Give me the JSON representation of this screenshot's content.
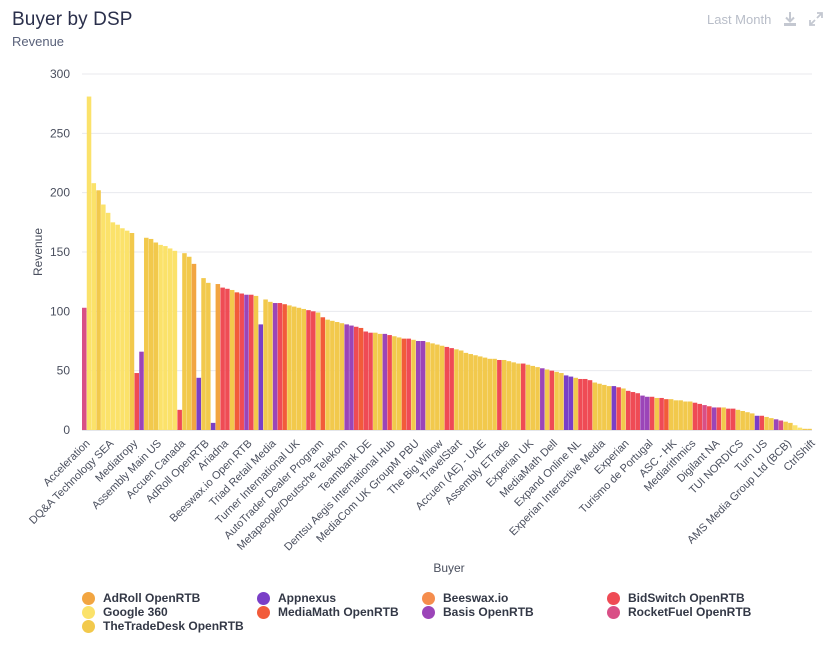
{
  "header": {
    "title": "Buyer by DSP",
    "subtitle": "Revenue",
    "range_label": "Last Month",
    "download_icon": "download-icon",
    "expand_icon": "expand-icon"
  },
  "chart_data": {
    "type": "bar",
    "stacked": true,
    "xlabel": "Buyer",
    "ylabel": "Revenue",
    "ylim": [
      0,
      300
    ],
    "yticks": [
      0,
      50,
      100,
      150,
      200,
      250,
      300
    ],
    "grid": true,
    "legend_position": "bottom",
    "x_tick_labels": [
      "Acceleration",
      "DQ&A Technology SEA",
      "Mediatropy",
      "Assembly Main US",
      "Accuen Canada",
      "AdRoll OpenRTB",
      "Ariadna",
      "Beeswax.io Open RTB",
      "Triad Retail Media",
      "Turner International UK",
      "AutoTrader Dealer Program",
      "Metapeople/Deutsche Telekom",
      "Teambank DE",
      "Dentsu Aegis International Hub",
      "MediaCom UK GroupM PBU",
      "The Big Willow",
      "TravelStart",
      "Accuen (AE) - UAE",
      "Assembly ETrade",
      "Experian UK",
      "MediaMath Dell",
      "Expand Online NL",
      "Experian Interactive Media",
      "Experian",
      "Turismo de Portugal",
      "ASC - HK",
      "Mediarithmics",
      "Digilant NA",
      "TUI NORDICS",
      "Turn US",
      "AMS Media Group Ltd (BCB)",
      "CtrlShift"
    ],
    "series": [
      {
        "name": "AdRoll OpenRTB",
        "color": "#f2a541"
      },
      {
        "name": "Appnexus",
        "color": "#7a3fc7"
      },
      {
        "name": "Beeswax.io",
        "color": "#f58d4d"
      },
      {
        "name": "BidSwitch OpenRTB",
        "color": "#ef4b55"
      },
      {
        "name": "Google 360",
        "color": "#fbe26a"
      },
      {
        "name": "MediaMath OpenRTB",
        "color": "#f25b3a"
      },
      {
        "name": "Basis OpenRTB",
        "color": "#9b45b8"
      },
      {
        "name": "RocketFuel OpenRTB",
        "color": "#d94f86"
      },
      {
        "name": "TheTradeDesk OpenRTB",
        "color": "#f2c94c"
      }
    ],
    "bars": [
      {
        "total": 103,
        "series": "RocketFuel OpenRTB"
      },
      {
        "total": 281,
        "series": "Google 360"
      },
      {
        "total": 208,
        "series": "Google 360"
      },
      {
        "total": 202,
        "series": "TheTradeDesk OpenRTB"
      },
      {
        "total": 190,
        "series": "Google 360"
      },
      {
        "total": 183,
        "series": "Google 360"
      },
      {
        "total": 175,
        "series": "Google 360"
      },
      {
        "total": 173,
        "series": "Google 360"
      },
      {
        "total": 170,
        "series": "Google 360"
      },
      {
        "total": 168,
        "series": "Google 360"
      },
      {
        "total": 166,
        "series": "TheTradeDesk OpenRTB"
      },
      {
        "total": 48,
        "series": "BidSwitch OpenRTB"
      },
      {
        "total": 66,
        "series": "Basis OpenRTB"
      },
      {
        "total": 162,
        "series": "TheTradeDesk OpenRTB"
      },
      {
        "total": 161,
        "series": "TheTradeDesk OpenRTB"
      },
      {
        "total": 158,
        "series": "TheTradeDesk OpenRTB"
      },
      {
        "total": 156,
        "series": "Google 360"
      },
      {
        "total": 155,
        "series": "Google 360"
      },
      {
        "total": 153,
        "series": "Google 360"
      },
      {
        "total": 151,
        "series": "Google 360"
      },
      {
        "total": 17,
        "series": "BidSwitch OpenRTB"
      },
      {
        "total": 149,
        "series": "TheTradeDesk OpenRTB"
      },
      {
        "total": 146,
        "series": "TheTradeDesk OpenRTB"
      },
      {
        "total": 140,
        "series": "AdRoll OpenRTB"
      },
      {
        "total": 44,
        "series": "Appnexus"
      },
      {
        "total": 128,
        "series": "TheTradeDesk OpenRTB"
      },
      {
        "total": 124,
        "series": "TheTradeDesk OpenRTB"
      },
      {
        "total": 6,
        "series": "Appnexus"
      },
      {
        "total": 123,
        "series": "AdRoll OpenRTB"
      },
      {
        "total": 120,
        "series": "BidSwitch OpenRTB"
      },
      {
        "total": 119,
        "series": "BidSwitch OpenRTB"
      },
      {
        "total": 118,
        "series": "TheTradeDesk OpenRTB"
      },
      {
        "total": 116,
        "series": "MediaMath OpenRTB"
      },
      {
        "total": 115,
        "series": "BidSwitch OpenRTB"
      },
      {
        "total": 114,
        "series": "Basis OpenRTB"
      },
      {
        "total": 114,
        "series": "BidSwitch OpenRTB"
      },
      {
        "total": 113,
        "series": "TheTradeDesk OpenRTB"
      },
      {
        "total": 89,
        "series": "Appnexus"
      },
      {
        "total": 110,
        "series": "TheTradeDesk OpenRTB"
      },
      {
        "total": 108,
        "series": "TheTradeDesk OpenRTB"
      },
      {
        "total": 107,
        "series": "Basis OpenRTB"
      },
      {
        "total": 107,
        "series": "BidSwitch OpenRTB"
      },
      {
        "total": 106,
        "series": "MediaMath OpenRTB"
      },
      {
        "total": 105,
        "series": "TheTradeDesk OpenRTB"
      },
      {
        "total": 104,
        "series": "TheTradeDesk OpenRTB"
      },
      {
        "total": 103,
        "series": "TheTradeDesk OpenRTB"
      },
      {
        "total": 102,
        "series": "TheTradeDesk OpenRTB"
      },
      {
        "total": 101,
        "series": "BidSwitch OpenRTB"
      },
      {
        "total": 100,
        "series": "BidSwitch OpenRTB"
      },
      {
        "total": 99,
        "series": "TheTradeDesk OpenRTB"
      },
      {
        "total": 95,
        "series": "MediaMath OpenRTB"
      },
      {
        "total": 93,
        "series": "TheTradeDesk OpenRTB"
      },
      {
        "total": 92,
        "series": "TheTradeDesk OpenRTB"
      },
      {
        "total": 91,
        "series": "TheTradeDesk OpenRTB"
      },
      {
        "total": 90,
        "series": "TheTradeDesk OpenRTB"
      },
      {
        "total": 89,
        "series": "Basis OpenRTB"
      },
      {
        "total": 88,
        "series": "Basis OpenRTB"
      },
      {
        "total": 87,
        "series": "BidSwitch OpenRTB"
      },
      {
        "total": 86,
        "series": "MediaMath OpenRTB"
      },
      {
        "total": 83,
        "series": "BidSwitch OpenRTB"
      },
      {
        "total": 82,
        "series": "BidSwitch OpenRTB"
      },
      {
        "total": 82,
        "series": "TheTradeDesk OpenRTB"
      },
      {
        "total": 81,
        "series": "TheTradeDesk OpenRTB"
      },
      {
        "total": 81,
        "series": "Basis OpenRTB"
      },
      {
        "total": 80,
        "series": "BidSwitch OpenRTB"
      },
      {
        "total": 79,
        "series": "TheTradeDesk OpenRTB"
      },
      {
        "total": 78,
        "series": "TheTradeDesk OpenRTB"
      },
      {
        "total": 77,
        "series": "MediaMath OpenRTB"
      },
      {
        "total": 77,
        "series": "BidSwitch OpenRTB"
      },
      {
        "total": 76,
        "series": "TheTradeDesk OpenRTB"
      },
      {
        "total": 75,
        "series": "Basis OpenRTB"
      },
      {
        "total": 75,
        "series": "Basis OpenRTB"
      },
      {
        "total": 74,
        "series": "TheTradeDesk OpenRTB"
      },
      {
        "total": 73,
        "series": "TheTradeDesk OpenRTB"
      },
      {
        "total": 72,
        "series": "TheTradeDesk OpenRTB"
      },
      {
        "total": 71,
        "series": "TheTradeDesk OpenRTB"
      },
      {
        "total": 70,
        "series": "BidSwitch OpenRTB"
      },
      {
        "total": 69,
        "series": "BidSwitch OpenRTB"
      },
      {
        "total": 68,
        "series": "TheTradeDesk OpenRTB"
      },
      {
        "total": 67,
        "series": "TheTradeDesk OpenRTB"
      },
      {
        "total": 65,
        "series": "TheTradeDesk OpenRTB"
      },
      {
        "total": 64,
        "series": "TheTradeDesk OpenRTB"
      },
      {
        "total": 63,
        "series": "TheTradeDesk OpenRTB"
      },
      {
        "total": 62,
        "series": "TheTradeDesk OpenRTB"
      },
      {
        "total": 61,
        "series": "TheTradeDesk OpenRTB"
      },
      {
        "total": 60,
        "series": "TheTradeDesk OpenRTB"
      },
      {
        "total": 60,
        "series": "TheTradeDesk OpenRTB"
      },
      {
        "total": 59,
        "series": "BidSwitch OpenRTB"
      },
      {
        "total": 59,
        "series": "TheTradeDesk OpenRTB"
      },
      {
        "total": 58,
        "series": "TheTradeDesk OpenRTB"
      },
      {
        "total": 57,
        "series": "TheTradeDesk OpenRTB"
      },
      {
        "total": 56,
        "series": "TheTradeDesk OpenRTB"
      },
      {
        "total": 56,
        "series": "BidSwitch OpenRTB"
      },
      {
        "total": 55,
        "series": "TheTradeDesk OpenRTB"
      },
      {
        "total": 54,
        "series": "TheTradeDesk OpenRTB"
      },
      {
        "total": 53,
        "series": "TheTradeDesk OpenRTB"
      },
      {
        "total": 52,
        "series": "Basis OpenRTB"
      },
      {
        "total": 51,
        "series": "TheTradeDesk OpenRTB"
      },
      {
        "total": 50,
        "series": "BidSwitch OpenRTB"
      },
      {
        "total": 49,
        "series": "TheTradeDesk OpenRTB"
      },
      {
        "total": 48,
        "series": "TheTradeDesk OpenRTB"
      },
      {
        "total": 46,
        "series": "Appnexus"
      },
      {
        "total": 45,
        "series": "Appnexus"
      },
      {
        "total": 44,
        "series": "TheTradeDesk OpenRTB"
      },
      {
        "total": 43,
        "series": "BidSwitch OpenRTB"
      },
      {
        "total": 43,
        "series": "BidSwitch OpenRTB"
      },
      {
        "total": 42,
        "series": "BidSwitch OpenRTB"
      },
      {
        "total": 40,
        "series": "TheTradeDesk OpenRTB"
      },
      {
        "total": 39,
        "series": "TheTradeDesk OpenRTB"
      },
      {
        "total": 38,
        "series": "TheTradeDesk OpenRTB"
      },
      {
        "total": 37,
        "series": "TheTradeDesk OpenRTB"
      },
      {
        "total": 37,
        "series": "Appnexus"
      },
      {
        "total": 36,
        "series": "BidSwitch OpenRTB"
      },
      {
        "total": 35,
        "series": "TheTradeDesk OpenRTB"
      },
      {
        "total": 33,
        "series": "BidSwitch OpenRTB"
      },
      {
        "total": 32,
        "series": "BidSwitch OpenRTB"
      },
      {
        "total": 31,
        "series": "BidSwitch OpenRTB"
      },
      {
        "total": 29,
        "series": "Basis OpenRTB"
      },
      {
        "total": 28,
        "series": "Basis OpenRTB"
      },
      {
        "total": 28,
        "series": "BidSwitch OpenRTB"
      },
      {
        "total": 27,
        "series": "TheTradeDesk OpenRTB"
      },
      {
        "total": 27,
        "series": "BidSwitch OpenRTB"
      },
      {
        "total": 26,
        "series": "MediaMath OpenRTB"
      },
      {
        "total": 26,
        "series": "TheTradeDesk OpenRTB"
      },
      {
        "total": 25,
        "series": "TheTradeDesk OpenRTB"
      },
      {
        "total": 25,
        "series": "TheTradeDesk OpenRTB"
      },
      {
        "total": 24,
        "series": "TheTradeDesk OpenRTB"
      },
      {
        "total": 24,
        "series": "TheTradeDesk OpenRTB"
      },
      {
        "total": 23,
        "series": "BidSwitch OpenRTB"
      },
      {
        "total": 22,
        "series": "BidSwitch OpenRTB"
      },
      {
        "total": 21,
        "series": "RocketFuel OpenRTB"
      },
      {
        "total": 20,
        "series": "BidSwitch OpenRTB"
      },
      {
        "total": 19,
        "series": "Basis OpenRTB"
      },
      {
        "total": 19,
        "series": "BidSwitch OpenRTB"
      },
      {
        "total": 19,
        "series": "TheTradeDesk OpenRTB"
      },
      {
        "total": 18,
        "series": "BidSwitch OpenRTB"
      },
      {
        "total": 18,
        "series": "BidSwitch OpenRTB"
      },
      {
        "total": 17,
        "series": "TheTradeDesk OpenRTB"
      },
      {
        "total": 16,
        "series": "TheTradeDesk OpenRTB"
      },
      {
        "total": 15,
        "series": "TheTradeDesk OpenRTB"
      },
      {
        "total": 14,
        "series": "TheTradeDesk OpenRTB"
      },
      {
        "total": 12,
        "series": "Appnexus"
      },
      {
        "total": 12,
        "series": "BidSwitch OpenRTB"
      },
      {
        "total": 11,
        "series": "TheTradeDesk OpenRTB"
      },
      {
        "total": 10,
        "series": "TheTradeDesk OpenRTB"
      },
      {
        "total": 9,
        "series": "Basis OpenRTB"
      },
      {
        "total": 8,
        "series": "RocketFuel OpenRTB"
      },
      {
        "total": 7,
        "series": "TheTradeDesk OpenRTB"
      },
      {
        "total": 6,
        "series": "TheTradeDesk OpenRTB"
      },
      {
        "total": 4,
        "series": "Google 360"
      },
      {
        "total": 2,
        "series": "Google 360"
      },
      {
        "total": 1,
        "series": "TheTradeDesk OpenRTB"
      },
      {
        "total": 1,
        "series": "TheTradeDesk OpenRTB"
      }
    ]
  }
}
